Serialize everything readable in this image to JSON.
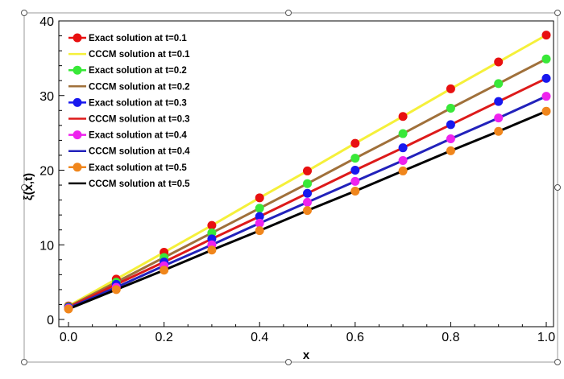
{
  "chart_data": {
    "type": "line",
    "xlabel": "x",
    "ylabel": "ξ(x,t)",
    "xlim": [
      0.0,
      1.0
    ],
    "ylim": [
      0,
      40
    ],
    "xticks": [
      "0.0",
      "0.2",
      "0.4",
      "0.6",
      "0.8",
      "1.0"
    ],
    "yticks": [
      "0",
      "10",
      "20",
      "30",
      "40"
    ],
    "x": [
      0.0,
      0.1,
      0.2,
      0.3,
      0.4,
      0.5,
      0.6,
      0.7,
      0.8,
      0.9,
      1.0
    ],
    "legend_position": "top-left",
    "grid": false,
    "series": [
      {
        "name": "Exact solution at t=0.1",
        "kind": "markers",
        "color": "#e81010",
        "values": [
          1.8,
          5.4,
          9.0,
          12.6,
          16.3,
          19.9,
          23.6,
          27.2,
          30.9,
          34.5,
          38.1
        ]
      },
      {
        "name": "CCCM solution at t=0.1",
        "kind": "line",
        "color": "#f5f03a",
        "values": [
          1.8,
          5.4,
          9.0,
          12.6,
          16.3,
          19.9,
          23.6,
          27.2,
          30.9,
          34.5,
          38.1
        ]
      },
      {
        "name": "Exact solution at t=0.2",
        "kind": "markers",
        "color": "#38e838",
        "values": [
          1.7,
          5.0,
          8.3,
          11.6,
          14.9,
          18.2,
          21.6,
          24.9,
          28.3,
          31.6,
          34.9
        ]
      },
      {
        "name": "CCCM solution at t=0.2",
        "kind": "line",
        "color": "#a0703a",
        "values": [
          1.7,
          5.0,
          8.3,
          11.6,
          14.9,
          18.2,
          21.6,
          24.9,
          28.3,
          31.6,
          34.9
        ]
      },
      {
        "name": "Exact solution at t=0.3",
        "kind": "markers",
        "color": "#1818ee",
        "values": [
          1.6,
          4.7,
          7.7,
          10.8,
          13.8,
          16.9,
          20.0,
          23.0,
          26.1,
          29.2,
          32.3
        ]
      },
      {
        "name": "CCCM solution at t=0.3",
        "kind": "line",
        "color": "#dd1a1a",
        "values": [
          1.6,
          4.7,
          7.7,
          10.8,
          13.8,
          16.9,
          20.0,
          23.0,
          26.1,
          29.2,
          32.3
        ]
      },
      {
        "name": "Exact solution at t=0.4",
        "kind": "markers",
        "color": "#ee22ee",
        "values": [
          1.5,
          4.3,
          7.2,
          10.0,
          12.9,
          15.7,
          18.5,
          21.3,
          24.2,
          27.0,
          29.9
        ]
      },
      {
        "name": "CCCM solution at t=0.4",
        "kind": "line",
        "color": "#2222bb",
        "values": [
          1.5,
          4.3,
          7.2,
          10.0,
          12.9,
          15.7,
          18.5,
          21.3,
          24.2,
          27.0,
          29.9
        ]
      },
      {
        "name": "Exact solution at t=0.5",
        "kind": "markers",
        "color": "#f0861c",
        "values": [
          1.4,
          4.0,
          6.6,
          9.3,
          11.9,
          14.6,
          17.2,
          19.9,
          22.6,
          25.2,
          27.9
        ]
      },
      {
        "name": "CCCM solution at t=0.5",
        "kind": "line",
        "color": "#000000",
        "values": [
          1.4,
          4.0,
          6.6,
          9.3,
          11.9,
          14.6,
          17.2,
          19.9,
          22.6,
          25.2,
          27.9
        ]
      }
    ]
  }
}
